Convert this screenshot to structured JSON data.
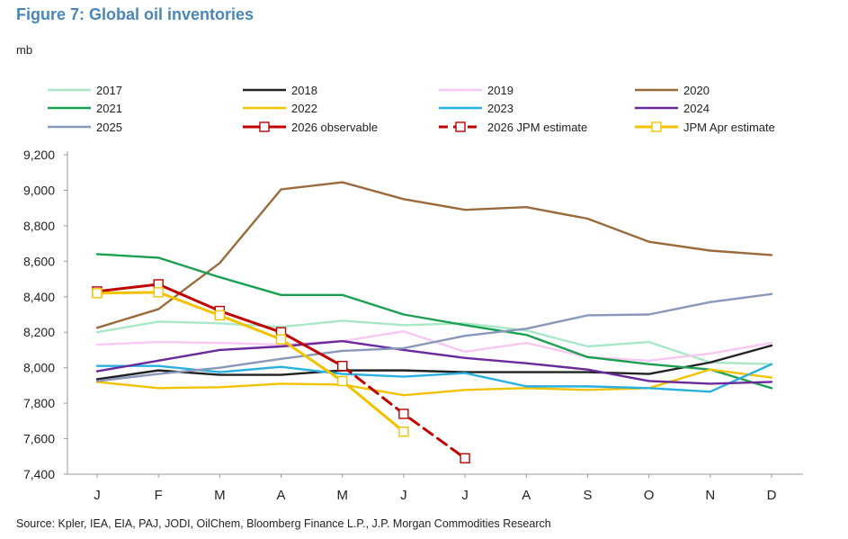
{
  "figure": {
    "title": "Figure 7: Global oil inventories",
    "unit": "mb",
    "source": "Source: Kpler, IEA, EIA, PAJ, JODI, OilChem, Bloomberg Finance L.P., J.P. Morgan Commodities Research"
  },
  "chart_data": {
    "type": "line",
    "title": "Figure 7: Global oil inventories",
    "ylabel": "mb",
    "xlabel": "",
    "categories": [
      "J",
      "F",
      "M",
      "A",
      "M",
      "J",
      "J",
      "A",
      "S",
      "O",
      "N",
      "D"
    ],
    "ylim": [
      7400,
      9200
    ],
    "yticks": [
      7400,
      7600,
      7800,
      8000,
      8200,
      8400,
      8600,
      8800,
      9000,
      9200
    ],
    "ytick_labels": [
      "7,400",
      "7,600",
      "7,800",
      "8,000",
      "8,200",
      "8,400",
      "8,600",
      "8,800",
      "9,000",
      "9,200"
    ],
    "grid": false,
    "legend_placement": "top",
    "series": [
      {
        "name": "2017",
        "color": "#a8e8c8",
        "style": "solid",
        "values": [
          8200,
          8260,
          8250,
          8230,
          8265,
          8240,
          8250,
          8210,
          8120,
          8145,
          8030,
          8020
        ]
      },
      {
        "name": "2018",
        "color": "#222222",
        "style": "solid",
        "values": [
          7935,
          7985,
          7960,
          7960,
          7985,
          7985,
          7975,
          7975,
          7975,
          7965,
          8030,
          8125
        ]
      },
      {
        "name": "2019",
        "color": "#f8c8f0",
        "style": "solid",
        "values": [
          8130,
          8145,
          8140,
          8130,
          8150,
          8205,
          8090,
          8140,
          8060,
          8040,
          8080,
          8140
        ]
      },
      {
        "name": "2020",
        "color": "#9a6a3c",
        "style": "solid",
        "values": [
          8225,
          8330,
          8590,
          9005,
          9045,
          8950,
          8890,
          8905,
          8840,
          8710,
          8660,
          8635
        ]
      },
      {
        "name": "2021",
        "color": "#1aa050",
        "style": "solid",
        "values": [
          8640,
          8620,
          8510,
          8410,
          8410,
          8300,
          8240,
          8185,
          8060,
          8020,
          7990,
          7885
        ]
      },
      {
        "name": "2022",
        "color": "#f2c200",
        "style": "solid",
        "values": [
          7920,
          7885,
          7890,
          7910,
          7905,
          7845,
          7875,
          7885,
          7875,
          7885,
          7990,
          7945
        ]
      },
      {
        "name": "2023",
        "color": "#2ab0e0",
        "style": "solid",
        "values": [
          8010,
          8010,
          7975,
          8005,
          7965,
          7950,
          7970,
          7895,
          7895,
          7885,
          7865,
          8020
        ]
      },
      {
        "name": "2024",
        "color": "#6a2a9c",
        "style": "solid",
        "values": [
          7980,
          8040,
          8100,
          8120,
          8150,
          8100,
          8055,
          8025,
          7990,
          7925,
          7910,
          7920
        ]
      },
      {
        "name": "2025",
        "color": "#8898b8",
        "style": "solid",
        "values": [
          7925,
          7965,
          8000,
          8050,
          8095,
          8110,
          8180,
          8220,
          8295,
          8300,
          8370,
          8415
        ]
      },
      {
        "name": "2026 observable",
        "color": "#c00000",
        "style": "solid",
        "marker": "square",
        "values": [
          8430,
          8470,
          8320,
          8200,
          8010,
          null,
          null,
          null,
          null,
          null,
          null,
          null
        ]
      },
      {
        "name": "2026 JPM estimate",
        "color": "#c00000",
        "style": "dashed",
        "marker": "square",
        "values": [
          null,
          null,
          null,
          null,
          8010,
          7740,
          7490,
          null,
          null,
          null,
          null,
          null
        ]
      },
      {
        "name": "JPM Apr estimate",
        "color": "#f2c200",
        "style": "solid",
        "marker": "square",
        "values": [
          8420,
          8425,
          8295,
          8160,
          7925,
          7640,
          null,
          null,
          null,
          null,
          null,
          null
        ]
      }
    ]
  }
}
